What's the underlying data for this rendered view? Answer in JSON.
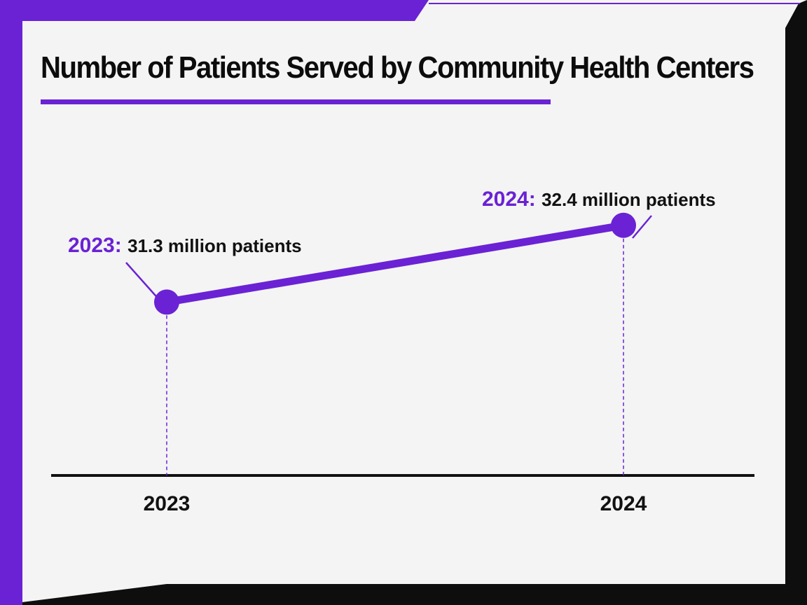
{
  "colors": {
    "accent": "#6a22d4",
    "frame_dark": "#0e0e0e",
    "background": "#f4f4f4",
    "text": "#111111"
  },
  "chart_data": {
    "type": "line",
    "title": "Number of Patients Served by Community Health Centers",
    "xlabel": "",
    "ylabel": "",
    "categories": [
      "2023",
      "2024"
    ],
    "series": [
      {
        "values": [
          31.3,
          32.4
        ]
      }
    ],
    "annotations": [
      {
        "year_label": "2023:",
        "value_label": "31.3 million patients"
      },
      {
        "year_label": "2024:",
        "value_label": "32.4 million patients"
      }
    ],
    "ylim": [
      30.0,
      33.0
    ],
    "grid": false,
    "legend": "none"
  }
}
